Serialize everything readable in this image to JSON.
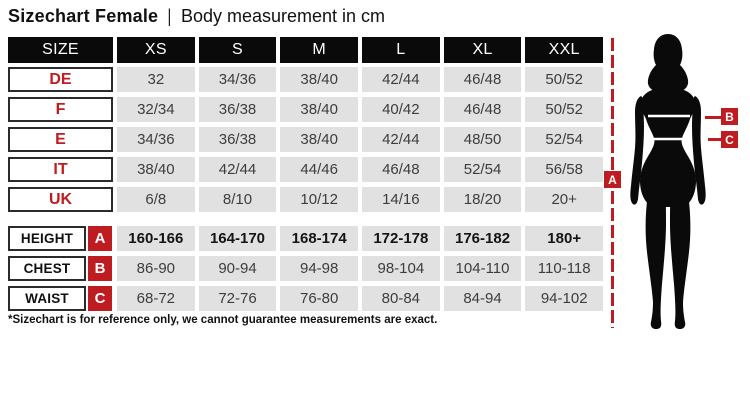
{
  "title": {
    "main": "Sizechart Female",
    "separator": "|",
    "subtitle": "Body measurement in cm"
  },
  "table": {
    "header": [
      "SIZE",
      "XS",
      "S",
      "M",
      "L",
      "XL",
      "XXL"
    ],
    "size_rows": [
      {
        "label": "DE",
        "values": [
          "32",
          "34/36",
          "38/40",
          "42/44",
          "46/48",
          "50/52"
        ]
      },
      {
        "label": "F",
        "values": [
          "32/34",
          "36/38",
          "38/40",
          "40/42",
          "46/48",
          "50/52"
        ]
      },
      {
        "label": "E",
        "values": [
          "34/36",
          "36/38",
          "38/40",
          "42/44",
          "48/50",
          "52/54"
        ]
      },
      {
        "label": "IT",
        "values": [
          "38/40",
          "42/44",
          "44/46",
          "46/48",
          "52/54",
          "56/58"
        ]
      },
      {
        "label": "UK",
        "values": [
          "6/8",
          "8/10",
          "10/12",
          "14/16",
          "18/20",
          "20+"
        ]
      }
    ],
    "measurement_rows": [
      {
        "label": "HEIGHT",
        "marker": "A",
        "bold": true,
        "values": [
          "160-166",
          "164-170",
          "168-174",
          "172-178",
          "176-182",
          "180+"
        ]
      },
      {
        "label": "CHEST",
        "marker": "B",
        "bold": false,
        "values": [
          "86-90",
          "90-94",
          "94-98",
          "98-104",
          "104-110",
          "110-118"
        ]
      },
      {
        "label": "WAIST",
        "marker": "C",
        "bold": false,
        "values": [
          "68-72",
          "72-76",
          "76-80",
          "80-84",
          "84-94",
          "94-102"
        ]
      }
    ]
  },
  "figure": {
    "markers": {
      "a": "A",
      "b": "B",
      "c": "C"
    }
  },
  "footnote": "*Sizechart is for reference only, we cannot guarantee measurements are exact.",
  "colors": {
    "accent_red": "#bf1c22",
    "cell_gray": "#e1e1e1",
    "header_black": "#0a0a0a",
    "value_text": "#3d3d3d"
  },
  "chart_data": {
    "type": "table",
    "title": "Sizechart Female | Body measurement in cm",
    "columns": [
      "SIZE",
      "XS",
      "S",
      "M",
      "L",
      "XL",
      "XXL"
    ],
    "rows": [
      [
        "DE",
        "32",
        "34/36",
        "38/40",
        "42/44",
        "46/48",
        "50/52"
      ],
      [
        "F",
        "32/34",
        "36/38",
        "38/40",
        "40/42",
        "46/48",
        "50/52"
      ],
      [
        "E",
        "34/36",
        "36/38",
        "38/40",
        "42/44",
        "48/50",
        "52/54"
      ],
      [
        "IT",
        "38/40",
        "42/44",
        "44/46",
        "46/48",
        "52/54",
        "56/58"
      ],
      [
        "UK",
        "6/8",
        "8/10",
        "10/12",
        "14/16",
        "18/20",
        "20+"
      ],
      [
        "HEIGHT (A)",
        "160-166",
        "164-170",
        "168-174",
        "172-178",
        "176-182",
        "180+"
      ],
      [
        "CHEST (B)",
        "86-90",
        "90-94",
        "94-98",
        "98-104",
        "104-110",
        "110-118"
      ],
      [
        "WAIST (C)",
        "68-72",
        "72-76",
        "76-80",
        "80-84",
        "84-94",
        "94-102"
      ]
    ],
    "footnote": "*Sizechart is for reference only, we cannot guarantee measurements are exact."
  }
}
